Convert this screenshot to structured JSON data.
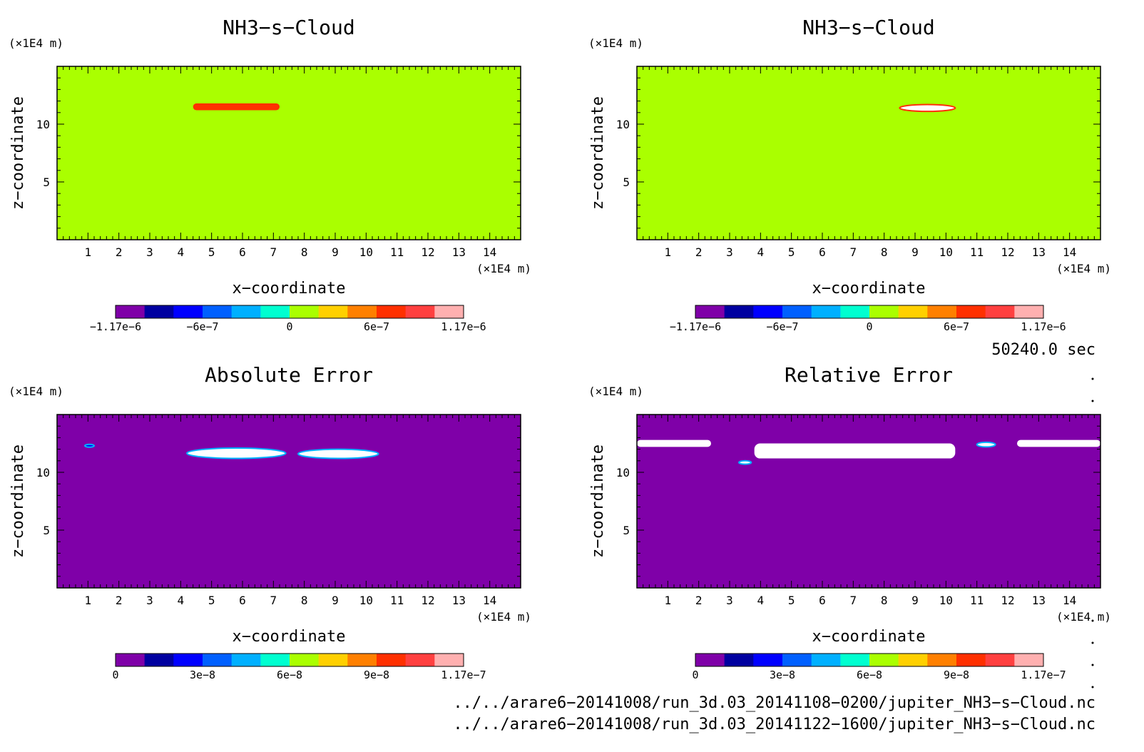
{
  "chart_data": [
    {
      "type": "heatmap",
      "title": "NH3−s−Cloud",
      "xlabel": "x−coordinate",
      "ylabel": "z−coordinate",
      "x_unit": "(×1E4 m)",
      "y_unit": "(×1E4 m)",
      "xlim": [
        0,
        15
      ],
      "ylim": [
        0,
        15
      ],
      "x_ticks": [
        "1",
        "2",
        "3",
        "4",
        "5",
        "6",
        "7",
        "8",
        "9",
        "10",
        "11",
        "12",
        "13",
        "14"
      ],
      "y_ticks": [
        "5",
        "10"
      ],
      "background_color": "#aaff00",
      "colorbar": {
        "range": [
          -1.17e-06,
          1.17e-06
        ],
        "tick_labels": [
          "−1.17e−6",
          "−6e−7",
          "0",
          "6e−7",
          "1.17e−6"
        ],
        "colors": [
          "#7f00a8",
          "#0000a0",
          "#0000ff",
          "#0060ff",
          "#00b0ff",
          "#00ffd0",
          "#aaff00",
          "#ffd000",
          "#ff8000",
          "#ff3000",
          "#ff4040",
          "#ffb0b0"
        ]
      },
      "features": [
        {
          "kind": "band",
          "x": [
            4.4,
            7.2
          ],
          "z": [
            11.2,
            11.8
          ],
          "value": 9e-07,
          "color": "#ff3000"
        }
      ]
    },
    {
      "type": "heatmap",
      "title": "NH3−s−Cloud",
      "xlabel": "x−coordinate",
      "ylabel": "z−coordinate",
      "x_unit": "(×1E4 m)",
      "y_unit": "(×1E4 m)",
      "xlim": [
        0,
        15
      ],
      "ylim": [
        0,
        15
      ],
      "x_ticks": [
        "1",
        "2",
        "3",
        "4",
        "5",
        "6",
        "7",
        "8",
        "9",
        "10",
        "11",
        "12",
        "13",
        "14"
      ],
      "y_ticks": [
        "5",
        "10"
      ],
      "background_color": "#aaff00",
      "colorbar": {
        "range": [
          -1.17e-06,
          1.17e-06
        ],
        "tick_labels": [
          "−1.17e−6",
          "−6e−7",
          "0",
          "6e−7",
          "1.17e−6"
        ],
        "colors": [
          "#7f00a8",
          "#0000a0",
          "#0000ff",
          "#0060ff",
          "#00b0ff",
          "#00ffd0",
          "#aaff00",
          "#ffd000",
          "#ff8000",
          "#ff3000",
          "#ff4040",
          "#ffb0b0"
        ]
      },
      "features": [
        {
          "kind": "blob",
          "x": [
            8.5,
            10.3
          ],
          "z": [
            11.1,
            11.7
          ],
          "value": "above range",
          "color": "#ffffff"
        }
      ]
    },
    {
      "type": "heatmap",
      "title": "Absolute Error",
      "xlabel": "x−coordinate",
      "ylabel": "z−coordinate",
      "x_unit": "(×1E4 m)",
      "y_unit": "(×1E4 m)",
      "xlim": [
        0,
        15
      ],
      "ylim": [
        0,
        15
      ],
      "x_ticks": [
        "1",
        "2",
        "3",
        "4",
        "5",
        "6",
        "7",
        "8",
        "9",
        "10",
        "11",
        "12",
        "13",
        "14"
      ],
      "y_ticks": [
        "5",
        "10"
      ],
      "background_color": "#7f00a8",
      "colorbar": {
        "range": [
          0,
          1.17e-07
        ],
        "tick_labels": [
          "0",
          "3e−8",
          "6e−8",
          "9e−8",
          "1.17e−7"
        ],
        "colors": [
          "#7f00a8",
          "#0000a0",
          "#0000ff",
          "#0060ff",
          "#00b0ff",
          "#00ffd0",
          "#aaff00",
          "#ffd000",
          "#ff8000",
          "#ff3000",
          "#ff4040",
          "#ffb0b0"
        ]
      },
      "features": [
        {
          "kind": "blob",
          "x": [
            4.2,
            7.4
          ],
          "z": [
            11.2,
            12.1
          ],
          "value": "above range",
          "color": "#ffffff"
        },
        {
          "kind": "blob",
          "x": [
            7.8,
            10.4
          ],
          "z": [
            11.2,
            12.0
          ],
          "value": "above range",
          "color": "#ffffff"
        },
        {
          "kind": "dot",
          "x": [
            0.9,
            1.2
          ],
          "z": [
            12.2,
            12.4
          ],
          "value": 2e-08,
          "color": "#0000ff"
        }
      ]
    },
    {
      "type": "heatmap",
      "title": "Relative Error",
      "xlabel": "x−coordinate",
      "ylabel": "z−coordinate",
      "x_unit": "(×1E4 m)",
      "y_unit": "(×1E4 m)",
      "xlim": [
        0,
        15
      ],
      "ylim": [
        0,
        15
      ],
      "x_ticks": [
        "1",
        "2",
        "3",
        "4",
        "5",
        "6",
        "7",
        "8",
        "9",
        "10",
        "11",
        "12",
        "13",
        "14"
      ],
      "y_ticks": [
        "5",
        "10"
      ],
      "background_color": "#7f00a8",
      "colorbar": {
        "range": [
          0,
          1.17e-07
        ],
        "tick_labels": [
          "0",
          "3e−8",
          "6e−8",
          "9e−8",
          "1.17e−7"
        ],
        "colors": [
          "#7f00a8",
          "#0000a0",
          "#0000ff",
          "#0060ff",
          "#00b0ff",
          "#00ffd0",
          "#aaff00",
          "#ffd000",
          "#ff8000",
          "#ff3000",
          "#ff4040",
          "#ffb0b0"
        ]
      },
      "features": [
        {
          "kind": "band",
          "x": [
            0,
            2.4
          ],
          "z": [
            12.2,
            12.8
          ],
          "value": "above range",
          "color": "#ffffff"
        },
        {
          "kind": "band",
          "x": [
            3.8,
            10.3
          ],
          "z": [
            11.2,
            12.5
          ],
          "value": "above range",
          "color": "#ffffff"
        },
        {
          "kind": "dot",
          "x": [
            3.3,
            3.7
          ],
          "z": [
            10.7,
            11.0
          ],
          "value": "above range",
          "color": "#ffffff"
        },
        {
          "kind": "dot",
          "x": [
            11.0,
            11.6
          ],
          "z": [
            12.2,
            12.6
          ],
          "value": "above range",
          "color": "#ffffff"
        },
        {
          "kind": "band",
          "x": [
            12.3,
            15
          ],
          "z": [
            12.2,
            12.8
          ],
          "value": "above range",
          "color": "#ffffff"
        }
      ]
    }
  ],
  "time_label": "50240.0 sec",
  "footer_lines": [
    "../../arare6−20141008/run_3d.03_20141108−0200/jupiter_NH3−s−Cloud.nc",
    "../../arare6−20141008/run_3d.03_20141122−1600/jupiter_NH3−s−Cloud.nc"
  ]
}
